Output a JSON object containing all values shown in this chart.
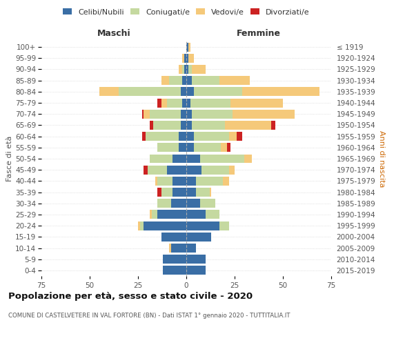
{
  "age_groups": [
    "0-4",
    "5-9",
    "10-14",
    "15-19",
    "20-24",
    "25-29",
    "30-34",
    "35-39",
    "40-44",
    "45-49",
    "50-54",
    "55-59",
    "60-64",
    "65-69",
    "70-74",
    "75-79",
    "80-84",
    "85-89",
    "90-94",
    "95-99",
    "100+"
  ],
  "birth_years": [
    "2015-2019",
    "2010-2014",
    "2005-2009",
    "2000-2004",
    "1995-1999",
    "1990-1994",
    "1985-1989",
    "1980-1984",
    "1975-1979",
    "1970-1974",
    "1965-1969",
    "1960-1964",
    "1955-1959",
    "1950-1954",
    "1945-1949",
    "1940-1944",
    "1935-1939",
    "1930-1934",
    "1925-1929",
    "1920-1924",
    "≤ 1919"
  ],
  "colors": {
    "celibi": "#3a6ea5",
    "coniugati": "#c5d9a0",
    "vedovi": "#f5c97a",
    "divorziati": "#cc2222"
  },
  "maschi": {
    "celibi": [
      12,
      12,
      8,
      13,
      22,
      15,
      8,
      7,
      7,
      10,
      7,
      4,
      4,
      3,
      3,
      2,
      3,
      2,
      1,
      1,
      0
    ],
    "coniugati": [
      0,
      0,
      0,
      0,
      2,
      3,
      7,
      6,
      8,
      10,
      12,
      11,
      17,
      14,
      16,
      8,
      32,
      7,
      1,
      0,
      0
    ],
    "vedovi": [
      0,
      0,
      1,
      0,
      1,
      1,
      0,
      0,
      1,
      0,
      0,
      0,
      0,
      0,
      3,
      3,
      10,
      4,
      2,
      1,
      0
    ],
    "divorziati": [
      0,
      0,
      0,
      0,
      0,
      0,
      0,
      2,
      0,
      2,
      0,
      0,
      2,
      2,
      1,
      2,
      0,
      0,
      0,
      0,
      0
    ]
  },
  "femmine": {
    "celibi": [
      10,
      10,
      5,
      13,
      17,
      10,
      7,
      5,
      5,
      8,
      7,
      4,
      4,
      3,
      3,
      2,
      4,
      3,
      1,
      1,
      1
    ],
    "coniugati": [
      0,
      0,
      0,
      0,
      5,
      7,
      8,
      7,
      14,
      14,
      23,
      14,
      18,
      17,
      21,
      21,
      25,
      14,
      2,
      0,
      0
    ],
    "vedovi": [
      0,
      0,
      0,
      0,
      0,
      0,
      0,
      1,
      3,
      3,
      4,
      3,
      4,
      24,
      32,
      27,
      40,
      16,
      7,
      3,
      1
    ],
    "divorziati": [
      0,
      0,
      0,
      0,
      0,
      0,
      0,
      0,
      0,
      0,
      0,
      2,
      3,
      2,
      0,
      0,
      0,
      0,
      0,
      0,
      0
    ]
  },
  "xlim": 75,
  "title": "Popolazione per età, sesso e stato civile - 2020",
  "subtitle": "COMUNE DI CASTELVETERE IN VAL FORTORE (BN) - Dati ISTAT 1° gennaio 2020 - TUTTITALIA.IT",
  "maschi_label": "Maschi",
  "femmine_label": "Femmine",
  "ylabel_left": "Fasce di età",
  "ylabel_right": "Anni di nascita",
  "legend_labels": [
    "Celibi/Nubili",
    "Coniugati/e",
    "Vedovi/e",
    "Divorziati/e"
  ],
  "bg_color": "#ffffff",
  "grid_color": "#cccccc",
  "text_color": "#555555",
  "title_color": "#111111",
  "subtitle_color": "#555555",
  "right_label_color": "#cc6600"
}
